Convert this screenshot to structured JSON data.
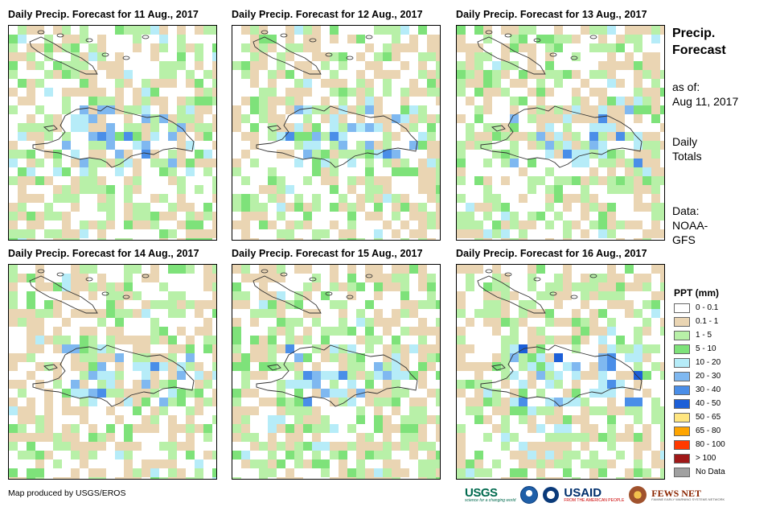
{
  "panels": [
    {
      "title": "Daily Precip. Forecast for 11 Aug., 2017",
      "seed": 11
    },
    {
      "title": "Daily Precip. Forecast for 12 Aug., 2017",
      "seed": 12
    },
    {
      "title": "Daily Precip. Forecast for 13 Aug., 2017",
      "seed": 13
    },
    {
      "title": "Daily Precip. Forecast for 14 Aug., 2017",
      "seed": 14
    },
    {
      "title": "Daily Precip. Forecast for 15 Aug., 2017",
      "seed": 15
    },
    {
      "title": "Daily Precip. Forecast for 16 Aug., 2017",
      "seed": 16
    }
  ],
  "side": {
    "title_line1": "Precip.",
    "title_line2": "Forecast",
    "asof_line1": "as of:",
    "asof_line2": "Aug 11, 2017",
    "totals_line1": "Daily",
    "totals_line2": "Totals",
    "data_line1": "Data:",
    "data_line2": "NOAA-",
    "data_line3": "GFS"
  },
  "legend": {
    "title": "PPT (mm)",
    "items": [
      {
        "label": "0 - 0.1",
        "color": "#ffffff"
      },
      {
        "label": "0.1 - 1",
        "color": "#ead5b3"
      },
      {
        "label": "1 - 5",
        "color": "#b8f0a8"
      },
      {
        "label": "5 - 10",
        "color": "#7ee27a"
      },
      {
        "label": "10 - 20",
        "color": "#b6ecf8"
      },
      {
        "label": "20 - 30",
        "color": "#7fb8f0"
      },
      {
        "label": "30 - 40",
        "color": "#4a8ee8"
      },
      {
        "label": "40 - 50",
        "color": "#1c5fd8"
      },
      {
        "label": "50 - 65",
        "color": "#ffe680"
      },
      {
        "label": "65 - 80",
        "color": "#ffa500"
      },
      {
        "label": "80 - 100",
        "color": "#ff3a00"
      },
      {
        "label": "> 100",
        "color": "#a01818"
      },
      {
        "label": "No Data",
        "color": "#a0a0a0"
      }
    ]
  },
  "credit": "Map produced by USGS/EROS",
  "logos": {
    "usgs": "USGS",
    "usgs_tagline": "science for a changing world",
    "noaa": "noaa-logo",
    "usaid": "USAID",
    "usaid_tagline": "FROM THE AMERICAN PEOPLE",
    "fews": "FEWS NET",
    "fews_tagline": "FAMINE EARLY WARNING SYSTEMS NETWORK"
  },
  "icons": [
    "hispaniola-outline-icon",
    "usgs-logo-icon",
    "noaa-logo-icon",
    "usaid-seal-icon",
    "fews-net-logo-icon"
  ]
}
